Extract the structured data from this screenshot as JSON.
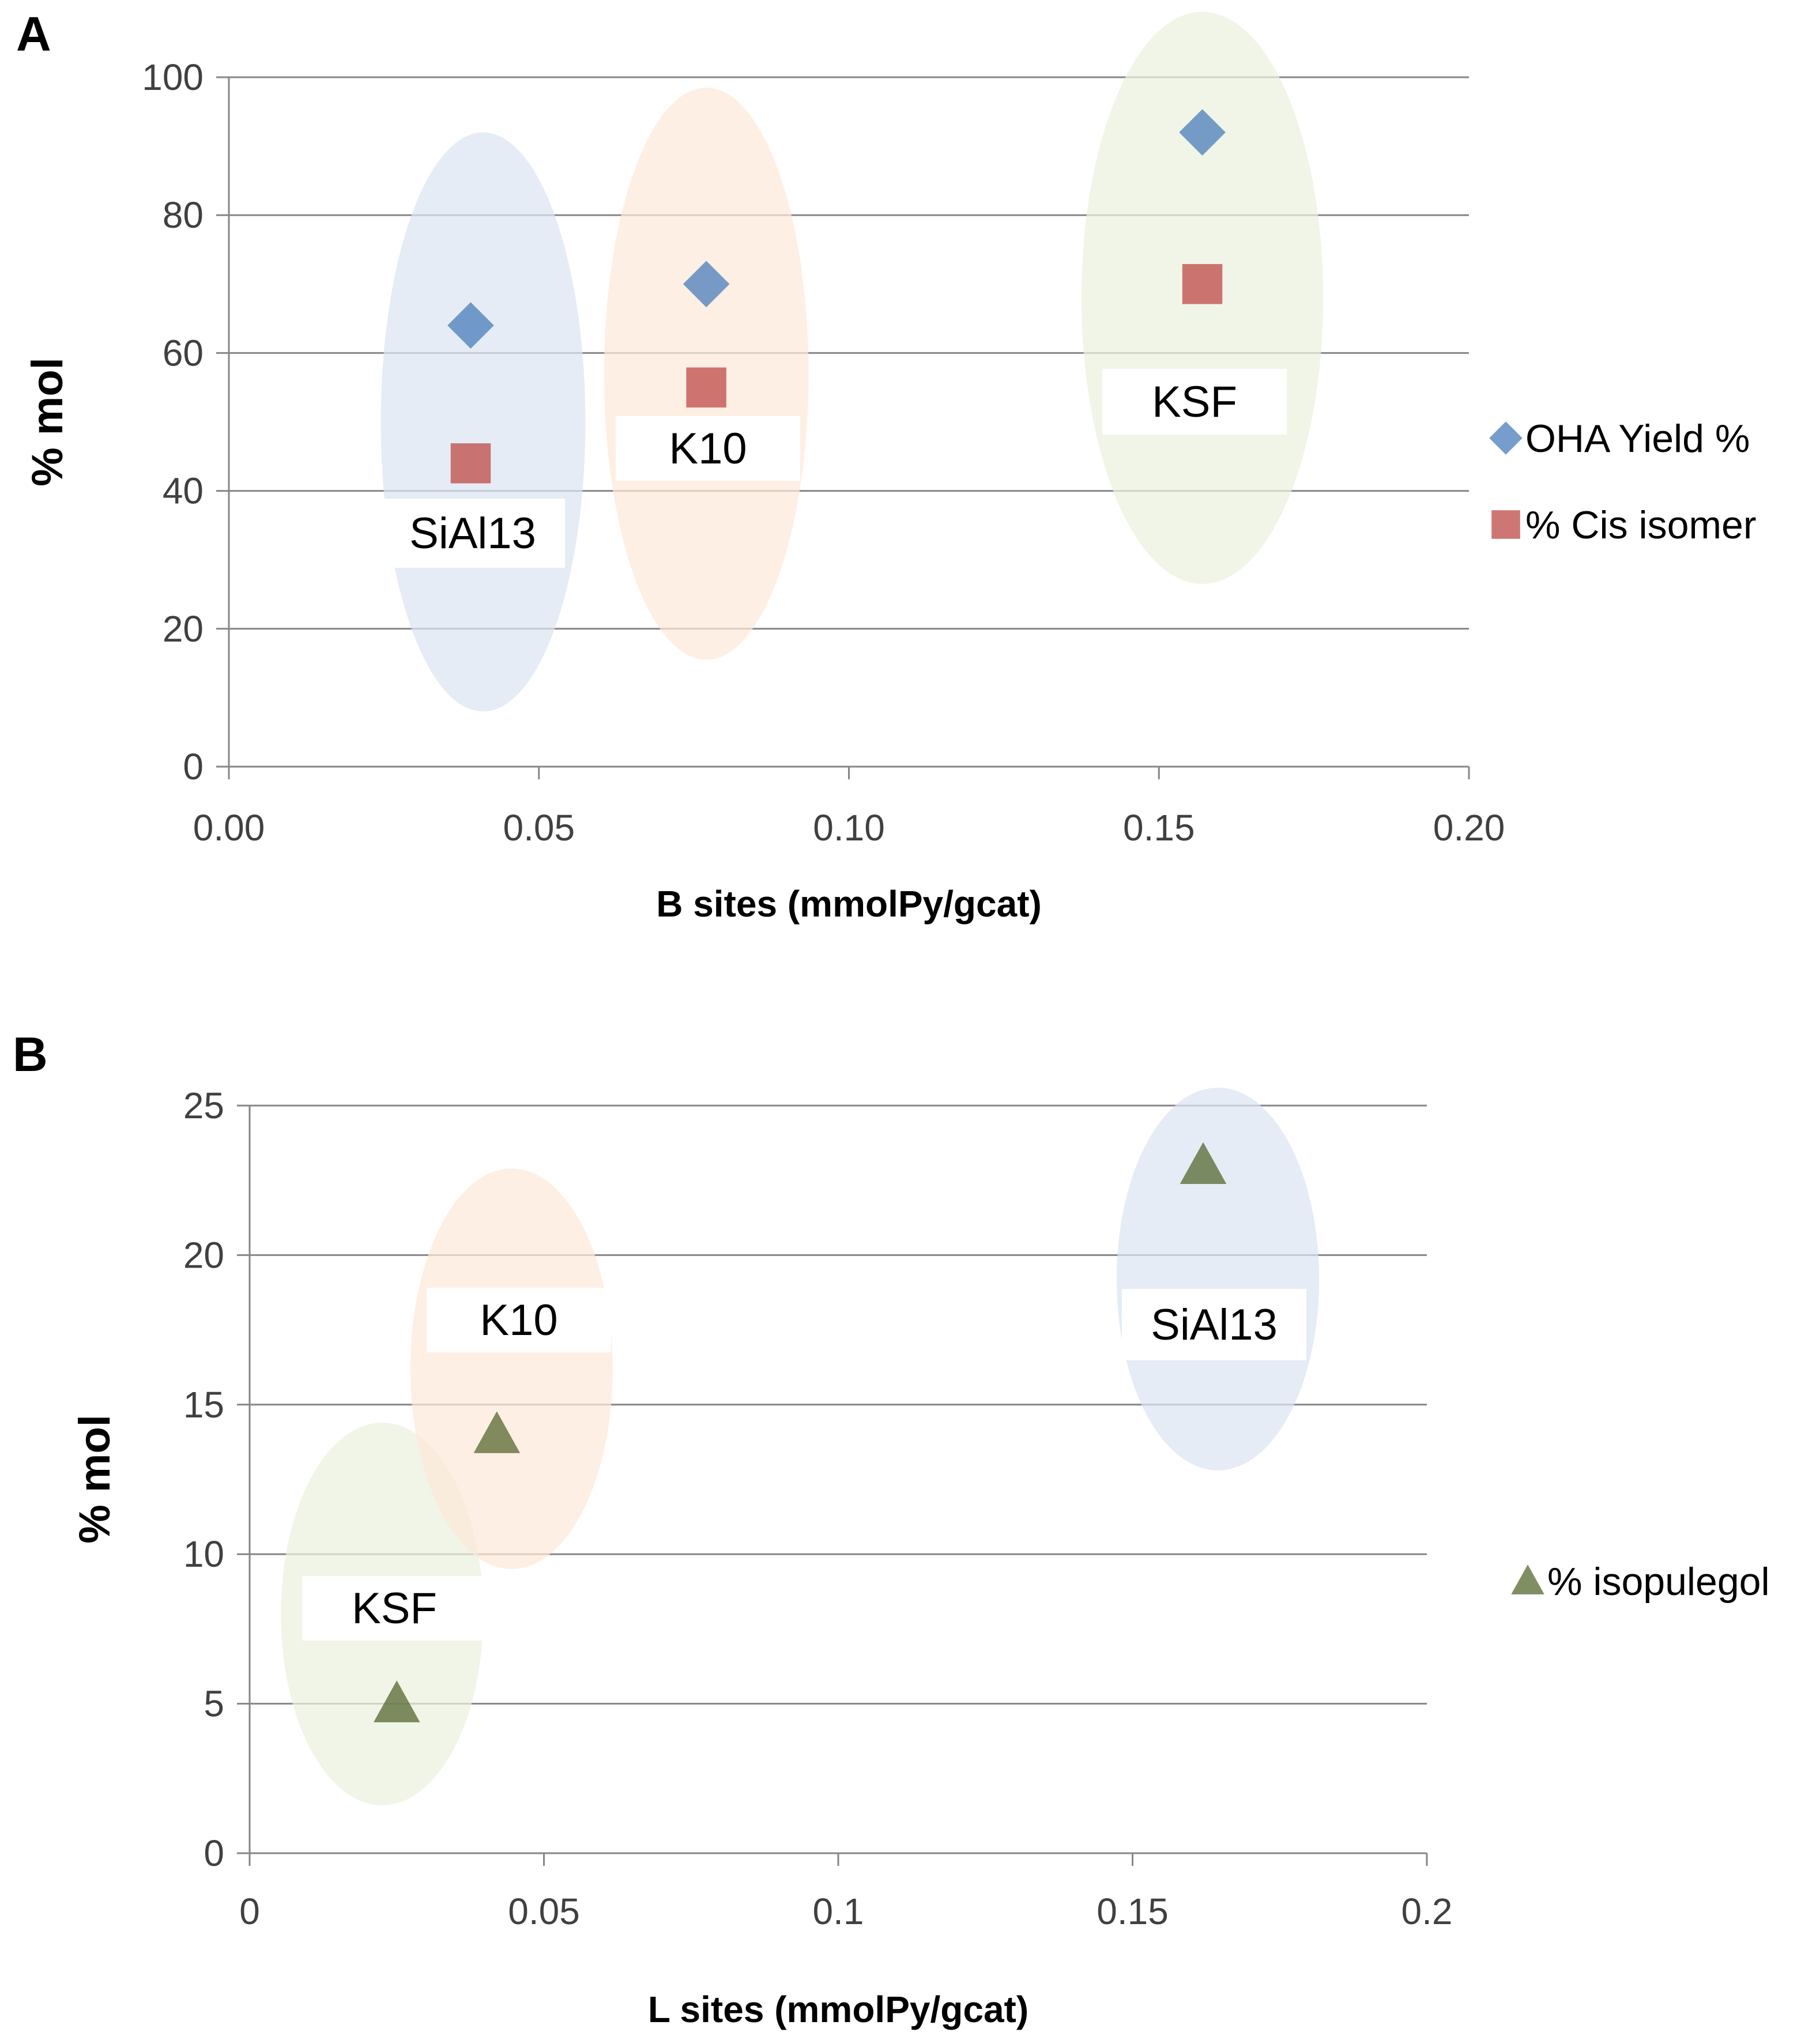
{
  "chart_data": [
    {
      "panel_label": "A",
      "type": "scatter",
      "xlabel": "B sites (mmolPy/gcat)",
      "ylabel": "% mol",
      "xlim": [
        0,
        0.2
      ],
      "ylim": [
        0,
        100
      ],
      "x_ticks": [
        "0.00",
        "0.05",
        "0.10",
        "0.15",
        "0.20"
      ],
      "y_ticks": [
        "0",
        "20",
        "40",
        "60",
        "80",
        "100"
      ],
      "grid": true,
      "legend_position": "right",
      "series": [
        {
          "name": "OHA Yield %",
          "marker": "diamond",
          "color": "#4f81bd",
          "points": [
            {
              "x": 0.039,
              "y": 64
            },
            {
              "x": 0.077,
              "y": 70
            },
            {
              "x": 0.157,
              "y": 92
            }
          ]
        },
        {
          "name": "% Cis isomer",
          "marker": "square",
          "color": "#c0504d",
          "points": [
            {
              "x": 0.039,
              "y": 44
            },
            {
              "x": 0.077,
              "y": 55
            },
            {
              "x": 0.157,
              "y": 70
            }
          ]
        }
      ],
      "groups": [
        {
          "label": "SiAl13",
          "x": 0.041,
          "y": 50,
          "rx": 0.0165,
          "ry": 42,
          "color": "#dbe5f1"
        },
        {
          "label": "K10",
          "x": 0.077,
          "y": 57,
          "rx": 0.0165,
          "ry": 41.5,
          "color": "#fde9d9"
        },
        {
          "label": "KSF",
          "x": 0.157,
          "y": 68,
          "rx": 0.0195,
          "ry": 41.5,
          "color": "#ebf1de"
        }
      ]
    },
    {
      "panel_label": "B",
      "type": "scatter",
      "xlabel": "L sites (mmolPy/gcat)",
      "ylabel": "% mol",
      "xlim": [
        0,
        0.2
      ],
      "ylim": [
        0,
        25
      ],
      "x_ticks": [
        "0",
        "0.05",
        "0.1",
        "0.15",
        "0.2"
      ],
      "y_ticks": [
        "0",
        "5",
        "10",
        "15",
        "20",
        "25"
      ],
      "grid": true,
      "legend_position": "right",
      "series": [
        {
          "name": "% isopulegol",
          "marker": "triangle",
          "color": "#4f6228",
          "points": [
            {
              "x": 0.025,
              "y": 5
            },
            {
              "x": 0.042,
              "y": 14
            },
            {
              "x": 0.162,
              "y": 23
            }
          ]
        }
      ],
      "groups": [
        {
          "label": "KSF",
          "x": 0.0225,
          "y": 8,
          "rx": 0.0172,
          "ry": 6.4,
          "color": "#ebf1de"
        },
        {
          "label": "K10",
          "x": 0.0445,
          "y": 16.2,
          "rx": 0.0172,
          "ry": 6.7,
          "color": "#fde9d9"
        },
        {
          "label": "SiAl13",
          "x": 0.1645,
          "y": 19.2,
          "rx": 0.0172,
          "ry": 6.4,
          "color": "#dbe5f1"
        }
      ]
    }
  ]
}
